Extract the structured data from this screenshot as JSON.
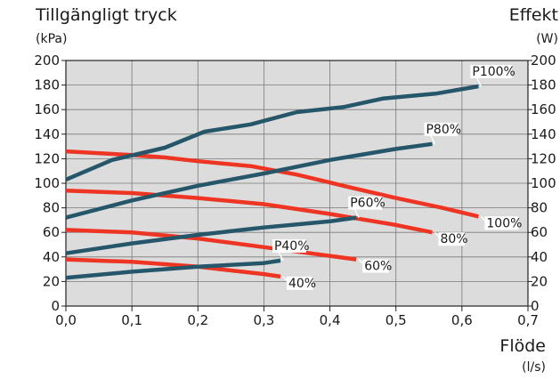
{
  "chart_data": {
    "type": "line",
    "left_axis": {
      "title": "Tillgängligt tryck",
      "unit": "(kPa)",
      "ylim": [
        0,
        200
      ],
      "ticks": [
        "0",
        "20",
        "40",
        "60",
        "80",
        "100",
        "120",
        "140",
        "160",
        "180",
        "200"
      ]
    },
    "right_axis": {
      "title": "Effekt",
      "unit": "(W)",
      "ylim": [
        0,
        200
      ],
      "ticks": [
        "0",
        "20",
        "40",
        "60",
        "80",
        "100",
        "120",
        "140",
        "160",
        "180",
        "200"
      ]
    },
    "x_axis": {
      "title": "Flöde",
      "unit": "(l/s)",
      "xlim": [
        0,
        0.7
      ],
      "ticks": [
        "0,0",
        "0,1",
        "0,2",
        "0,3",
        "0,4",
        "0,5",
        "0,6",
        "0,7"
      ]
    },
    "grid": true,
    "plot_background": "#dcdcdc",
    "series": [
      {
        "name": "100%",
        "group": "pressure",
        "color": "#ee3524",
        "x": [
          0.0,
          0.1,
          0.15,
          0.2,
          0.28,
          0.35,
          0.42,
          0.5,
          0.57,
          0.625
        ],
        "y": [
          126,
          123,
          121,
          118,
          114,
          107,
          98,
          88,
          80,
          73
        ]
      },
      {
        "name": "80%",
        "group": "pressure",
        "color": "#ee3524",
        "x": [
          0.0,
          0.1,
          0.2,
          0.3,
          0.4,
          0.5,
          0.555
        ],
        "y": [
          94,
          92,
          88,
          83,
          75,
          66,
          60
        ]
      },
      {
        "name": "60%",
        "group": "pressure",
        "color": "#ee3524",
        "x": [
          0.0,
          0.1,
          0.2,
          0.3,
          0.37,
          0.44
        ],
        "y": [
          62,
          60,
          55,
          48,
          43,
          38
        ]
      },
      {
        "name": "40%",
        "group": "pressure",
        "color": "#ee3524",
        "x": [
          0.0,
          0.1,
          0.2,
          0.3,
          0.325
        ],
        "y": [
          38,
          36,
          32,
          26,
          24
        ]
      },
      {
        "name": "P100%",
        "group": "power",
        "color": "#25566a",
        "x": [
          0.0,
          0.07,
          0.15,
          0.21,
          0.28,
          0.35,
          0.42,
          0.48,
          0.56,
          0.625
        ],
        "y": [
          103,
          119,
          129,
          142,
          148,
          158,
          162,
          169,
          173,
          179
        ]
      },
      {
        "name": "P80%",
        "group": "power",
        "color": "#25566a",
        "x": [
          0.0,
          0.1,
          0.2,
          0.3,
          0.4,
          0.5,
          0.555
        ],
        "y": [
          72,
          86,
          98,
          108,
          119,
          128,
          132
        ]
      },
      {
        "name": "P60%",
        "group": "power",
        "color": "#25566a",
        "x": [
          0.0,
          0.1,
          0.2,
          0.3,
          0.4,
          0.44
        ],
        "y": [
          43,
          51,
          58,
          64,
          69,
          72
        ]
      },
      {
        "name": "P40%",
        "group": "power",
        "color": "#25566a",
        "x": [
          0.0,
          0.1,
          0.2,
          0.3,
          0.325
        ],
        "y": [
          23,
          28,
          32,
          35,
          37
        ]
      }
    ]
  }
}
